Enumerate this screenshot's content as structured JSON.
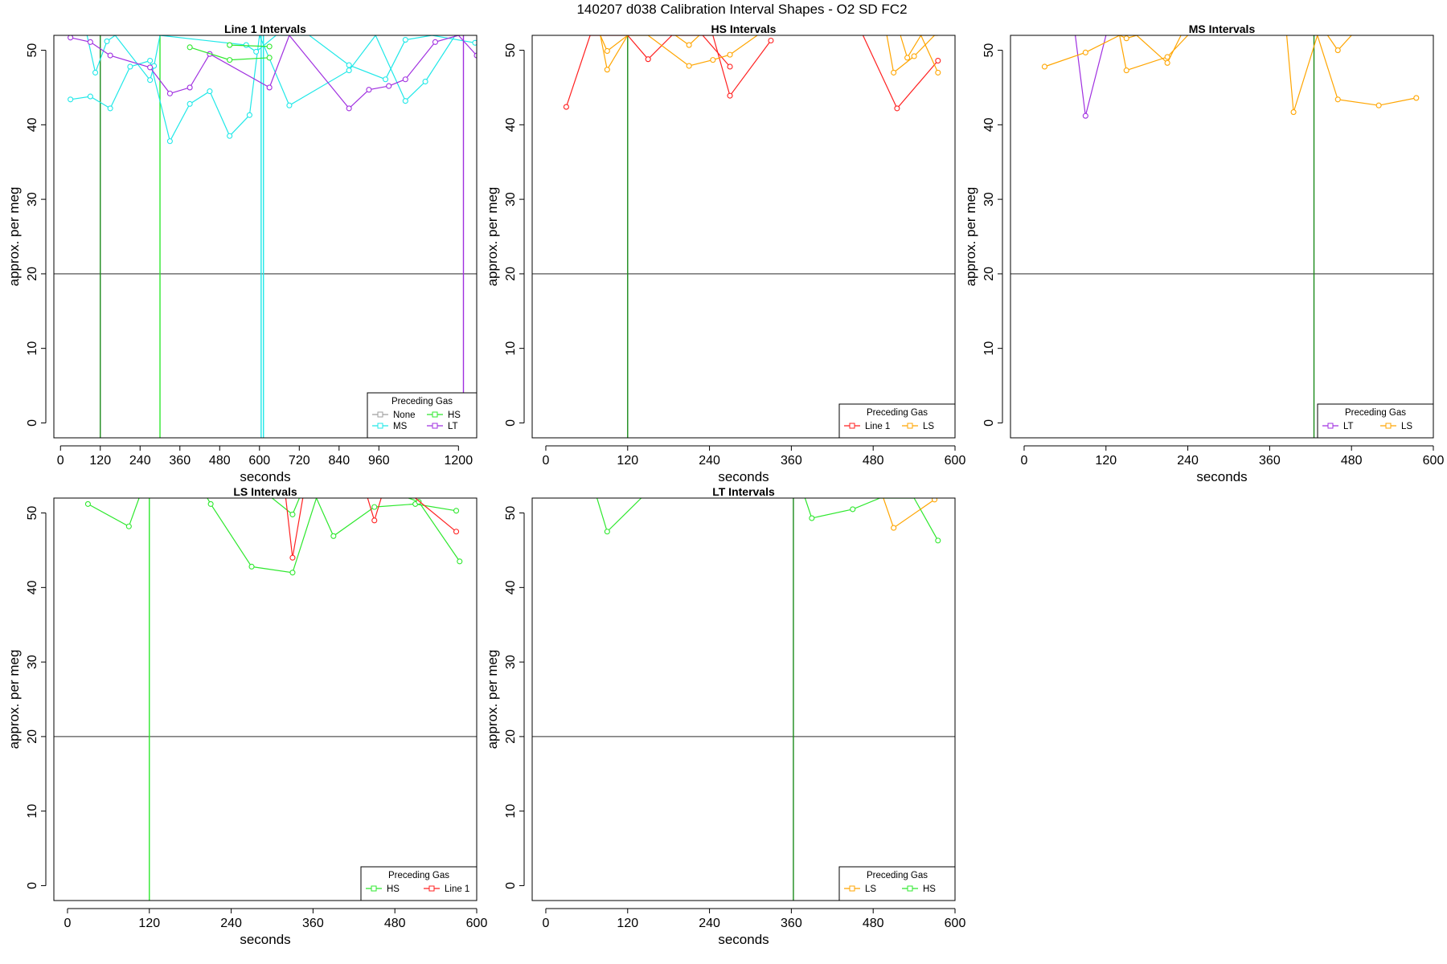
{
  "figure_title": "140207   d038   Calibration Interval Shapes - O2 SD FC2",
  "colors": {
    "None": "#9e9e9e",
    "Line 1": "#ff2020",
    "HS": "#2ee82e",
    "MS": "#20e8e8",
    "LS": "#ffa500",
    "LT": "#a030e0",
    "marker_green": "#1a8a1a",
    "hline": "#555555"
  },
  "chart_data": [
    {
      "type": "line",
      "title": "Line 1 Intervals",
      "xlabel": "seconds",
      "ylabel": "approx. per meg",
      "xlim": [
        -20,
        1255
      ],
      "ylim": [
        -2,
        52
      ],
      "xticks": [
        0,
        120,
        240,
        360,
        480,
        600,
        720,
        840,
        960,
        1200
      ],
      "xtick_labels": [
        "0",
        "120",
        "240",
        "360",
        "480",
        "600",
        "720",
        "840",
        "960",
        "1200"
      ],
      "yticks": [
        0,
        10,
        20,
        30,
        40,
        50
      ],
      "hline": 20,
      "vlines": [
        {
          "x": 120,
          "color": "marker_green"
        },
        {
          "x": 300,
          "color": "HS"
        },
        {
          "x": 605,
          "color": "MS"
        },
        {
          "x": 612,
          "color": "MS"
        },
        {
          "x": 1215,
          "color": "LT"
        }
      ],
      "legend": {
        "title": "Preceding Gas",
        "position": "bottom-right",
        "ncol": 2,
        "entries": [
          "None",
          "HS",
          "MS",
          "LT"
        ]
      },
      "series": [
        {
          "name": "MS",
          "x": [
            30,
            90,
            150,
            210,
            270,
            330,
            390,
            450,
            510,
            570,
            600,
            690,
            870,
            950,
            1040,
            1100,
            1190
          ],
          "y": [
            43.4,
            43.8,
            42.2,
            47.8,
            48.6,
            37.8,
            42.8,
            44.5,
            38.5,
            41.3,
            52,
            42.6,
            47.3,
            52,
            43.2,
            45.8,
            52
          ]
        },
        {
          "name": "MS",
          "x": [
            80,
            105,
            140,
            165,
            270,
            282,
            300,
            560,
            590,
            650,
            670,
            750,
            870,
            980,
            1040,
            1120,
            1250
          ],
          "y": [
            52,
            47.0,
            51.2,
            52,
            46.0,
            47.9,
            52,
            50.7,
            49.8,
            52,
            52,
            52,
            48.0,
            46.1,
            51.4,
            52,
            51.0
          ]
        },
        {
          "name": "LT",
          "x": [
            30,
            90,
            150,
            270,
            330,
            390,
            450,
            630,
            690,
            870,
            930,
            990,
            1040,
            1130,
            1200,
            1255
          ],
          "y": [
            51.7,
            51.1,
            49.3,
            47.7,
            44.2,
            45.0,
            49.5,
            45.0,
            52,
            42.2,
            44.7,
            45.2,
            46.1,
            51.1,
            52,
            49.3
          ]
        },
        {
          "name": "HS",
          "x": [
            390,
            510,
            630
          ],
          "y": [
            50.4,
            48.7,
            49.0
          ]
        },
        {
          "name": "HS",
          "x": [
            510,
            630
          ],
          "y": [
            50.7,
            50.5
          ]
        }
      ]
    },
    {
      "type": "line",
      "title": "HS Intervals",
      "xlabel": "seconds",
      "ylabel": "approx. per meg",
      "xlim": [
        -20,
        600
      ],
      "ylim": [
        -2,
        52
      ],
      "xticks": [
        0,
        120,
        240,
        360,
        480,
        600
      ],
      "xtick_labels": [
        "0",
        "120",
        "240",
        "360",
        "480",
        "600"
      ],
      "yticks": [
        0,
        10,
        20,
        30,
        40,
        50
      ],
      "hline": 20,
      "vlines": [
        {
          "x": 120,
          "color": "marker_green"
        }
      ],
      "legend": {
        "title": "Preceding Gas",
        "position": "bottom-right",
        "ncol": 2,
        "entries": [
          "Line 1",
          "LS"
        ]
      },
      "series": [
        {
          "name": "Line 1",
          "x": [
            30,
            65,
            120,
            150,
            185,
            215,
            245,
            270,
            330
          ],
          "y": [
            42.4,
            52,
            52,
            48.8,
            52,
            52,
            52,
            43.9,
            51.3
          ]
        },
        {
          "name": "Line 1",
          "x": [
            230,
            270
          ],
          "y": [
            52,
            47.8
          ]
        },
        {
          "name": "Line 1",
          "x": [
            465,
            515,
            575
          ],
          "y": [
            52,
            42.2,
            48.6
          ]
        },
        {
          "name": "LS",
          "x": [
            80,
            90,
            120,
            150,
            210,
            245,
            270,
            310
          ],
          "y": [
            52,
            47.4,
            52,
            52,
            47.9,
            48.7,
            49.4,
            52
          ]
        },
        {
          "name": "LS",
          "x": [
            80,
            90,
            120
          ],
          "y": [
            52,
            49.9,
            52
          ]
        },
        {
          "name": "LS",
          "x": [
            190,
            210,
            225
          ],
          "y": [
            52,
            50.7,
            52
          ]
        },
        {
          "name": "LS",
          "x": [
            500,
            510,
            540,
            570,
            575
          ],
          "y": [
            52,
            47.0,
            49.2,
            52,
            52
          ]
        },
        {
          "name": "LS",
          "x": [
            520,
            530,
            550,
            575
          ],
          "y": [
            52,
            49.0,
            52,
            47.0
          ]
        }
      ]
    },
    {
      "type": "line",
      "title": "MS Intervals",
      "xlabel": "seconds",
      "ylabel": "approx. per meg",
      "xlim": [
        -20,
        600
      ],
      "ylim": [
        -2,
        52
      ],
      "xticks": [
        0,
        120,
        240,
        360,
        480,
        600
      ],
      "xtick_labels": [
        "0",
        "120",
        "240",
        "360",
        "480",
        "600"
      ],
      "yticks": [
        0,
        10,
        20,
        30,
        40,
        50
      ],
      "hline": 20,
      "vlines": [
        {
          "x": 425,
          "color": "marker_green"
        }
      ],
      "legend": {
        "title": "Preceding Gas",
        "position": "bottom-right",
        "ncol": 2,
        "entries": [
          "LT",
          "LS"
        ]
      },
      "series": [
        {
          "name": "LT",
          "x": [
            75,
            90,
            120
          ],
          "y": [
            52,
            41.2,
            52
          ]
        },
        {
          "name": "LS",
          "x": [
            30,
            90,
            140,
            150,
            165,
            210,
            230
          ],
          "y": [
            47.8,
            49.7,
            52,
            51.6,
            52,
            48.3,
            52
          ]
        },
        {
          "name": "LS",
          "x": [
            140,
            150,
            210,
            240
          ],
          "y": [
            52,
            47.3,
            49.1,
            52
          ]
        },
        {
          "name": "LS",
          "x": [
            385,
            395,
            430,
            460,
            520,
            575
          ],
          "y": [
            52,
            41.7,
            52,
            43.4,
            42.6,
            43.6
          ]
        },
        {
          "name": "LS",
          "x": [
            445,
            460,
            480
          ],
          "y": [
            52,
            50.0,
            52
          ]
        }
      ]
    },
    {
      "type": "line",
      "title": "LS Intervals",
      "xlabel": "seconds",
      "ylabel": "approx. per meg",
      "xlim": [
        -20,
        600
      ],
      "ylim": [
        -2,
        52
      ],
      "xticks": [
        0,
        120,
        240,
        360,
        480,
        600
      ],
      "xtick_labels": [
        "0",
        "120",
        "240",
        "360",
        "480",
        "600"
      ],
      "yticks": [
        0,
        10,
        20,
        30,
        40,
        50
      ],
      "hline": 20,
      "vlines": [
        {
          "x": 120,
          "color": "HS"
        }
      ],
      "legend": {
        "title": "Preceding Gas",
        "position": "bottom-right",
        "ncol": 2,
        "entries": [
          "HS",
          "Line 1"
        ]
      },
      "series": [
        {
          "name": "HS",
          "x": [
            30,
            90,
            105
          ],
          "y": [
            51.2,
            48.2,
            52
          ]
        },
        {
          "name": "HS",
          "x": [
            205,
            210,
            270,
            330,
            365,
            390,
            450,
            510,
            570
          ],
          "y": [
            52,
            51.2,
            42.8,
            42.0,
            52,
            46.9,
            50.8,
            51.2,
            50.3
          ]
        },
        {
          "name": "HS",
          "x": [
            300,
            330,
            340
          ],
          "y": [
            52,
            49.8,
            52
          ]
        },
        {
          "name": "HS",
          "x": [
            500,
            515,
            575
          ],
          "y": [
            52,
            51.5,
            43.5
          ]
        },
        {
          "name": "Line 1",
          "x": [
            320,
            330,
            345
          ],
          "y": [
            52,
            44.0,
            52
          ]
        },
        {
          "name": "Line 1",
          "x": [
            440,
            450,
            460
          ],
          "y": [
            52,
            49.0,
            52
          ]
        },
        {
          "name": "Line 1",
          "x": [
            510,
            570
          ],
          "y": [
            52,
            47.5
          ]
        }
      ]
    },
    {
      "type": "line",
      "title": "LT Intervals",
      "xlabel": "seconds",
      "ylabel": "approx. per meg",
      "xlim": [
        -20,
        600
      ],
      "ylim": [
        -2,
        52
      ],
      "xticks": [
        0,
        120,
        240,
        360,
        480,
        600
      ],
      "xtick_labels": [
        "0",
        "120",
        "240",
        "360",
        "480",
        "600"
      ],
      "yticks": [
        0,
        10,
        20,
        30,
        40,
        50
      ],
      "hline": 20,
      "vlines": [
        {
          "x": 363,
          "color": "marker_green"
        }
      ],
      "legend": {
        "title": "Preceding Gas",
        "position": "bottom-right",
        "ncol": 2,
        "entries": [
          "LS",
          "HS"
        ]
      },
      "series": [
        {
          "name": "HS",
          "x": [
            75,
            90,
            140
          ],
          "y": [
            52,
            47.5,
            52
          ]
        },
        {
          "name": "HS",
          "x": [
            380,
            390,
            450,
            490,
            510,
            540,
            575
          ],
          "y": [
            52,
            49.3,
            50.5,
            52,
            52,
            52,
            46.3
          ]
        },
        {
          "name": "LS",
          "x": [
            495,
            510,
            570
          ],
          "y": [
            52,
            48.0,
            51.8
          ]
        }
      ]
    }
  ]
}
